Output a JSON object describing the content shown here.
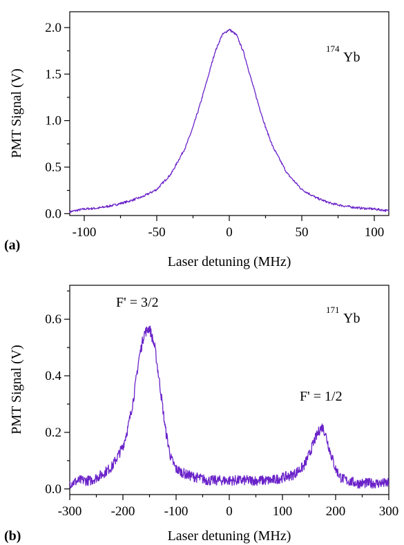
{
  "colors": {
    "trace": "#6a22c9",
    "axes": "#000000"
  },
  "chart_data": [
    {
      "type": "line",
      "panel_label": "(a)",
      "xlabel": "Laser detuning (MHz)",
      "ylabel": "PMT Signal (V)",
      "xlim": [
        -110,
        110
      ],
      "ylim": [
        -0.02,
        2.17
      ],
      "xticks": [
        -100,
        -50,
        0,
        50,
        100
      ],
      "xtick_labels": [
        "-100",
        "-50",
        "0",
        "50",
        "100"
      ],
      "yticks": [
        0.0,
        0.5,
        1.0,
        1.5,
        2.0
      ],
      "ytick_labels": [
        "0.0",
        "0.5",
        "1.0",
        "1.5",
        "2.0"
      ],
      "annotations": [
        {
          "sup": "174",
          "text": "Yb"
        }
      ],
      "series": [
        {
          "x": [
            -110,
            -100,
            -90,
            -80,
            -70,
            -60,
            -50,
            -40,
            -30,
            -25,
            -20,
            -15,
            -10,
            -5,
            0,
            5,
            10,
            15,
            20,
            25,
            30,
            40,
            50,
            60,
            70,
            80,
            90,
            100,
            110
          ],
          "values": [
            0.02,
            0.05,
            0.06,
            0.09,
            0.13,
            0.18,
            0.26,
            0.43,
            0.72,
            0.93,
            1.18,
            1.45,
            1.73,
            1.92,
            1.98,
            1.92,
            1.73,
            1.45,
            1.18,
            0.93,
            0.72,
            0.43,
            0.26,
            0.17,
            0.11,
            0.08,
            0.06,
            0.05,
            0.03
          ]
        }
      ]
    },
    {
      "type": "line",
      "panel_label": "(b)",
      "xlabel": "Laser detuning (MHz)",
      "ylabel": "PMT Signal (V)",
      "xlim": [
        -300,
        300
      ],
      "ylim": [
        -0.02,
        0.72
      ],
      "xticks": [
        -300,
        -200,
        -100,
        0,
        100,
        200,
        300
      ],
      "xtick_labels": [
        "-300",
        "-200",
        "-100",
        "0",
        "100",
        "200",
        "300"
      ],
      "yticks": [
        0.0,
        0.2,
        0.4,
        0.6
      ],
      "ytick_labels": [
        "0.0",
        "0.2",
        "0.4",
        "0.6"
      ],
      "annotations": [
        {
          "sup": "171",
          "text": "Yb"
        },
        {
          "text": "F' = 3/2"
        },
        {
          "text": "F' = 1/2"
        }
      ],
      "series": [
        {
          "x": [
            -300,
            -280,
            -260,
            -240,
            -220,
            -200,
            -190,
            -180,
            -170,
            -160,
            -150,
            -140,
            -130,
            -120,
            -110,
            -100,
            -80,
            -60,
            -40,
            -20,
            0,
            20,
            40,
            60,
            80,
            100,
            120,
            140,
            150,
            160,
            170,
            175,
            180,
            190,
            200,
            210,
            220,
            240,
            260,
            280,
            300
          ],
          "values": [
            0.02,
            0.03,
            0.03,
            0.05,
            0.08,
            0.15,
            0.22,
            0.32,
            0.46,
            0.55,
            0.57,
            0.5,
            0.36,
            0.21,
            0.11,
            0.07,
            0.05,
            0.04,
            0.03,
            0.03,
            0.03,
            0.03,
            0.03,
            0.03,
            0.03,
            0.04,
            0.05,
            0.08,
            0.12,
            0.17,
            0.21,
            0.22,
            0.2,
            0.13,
            0.07,
            0.04,
            0.03,
            0.02,
            0.02,
            0.02,
            0.02
          ]
        }
      ]
    }
  ]
}
